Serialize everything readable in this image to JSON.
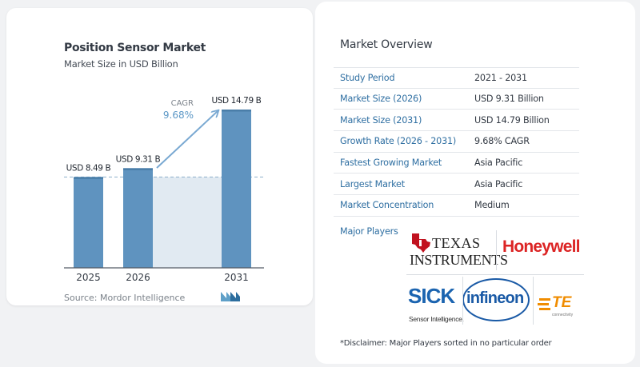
{
  "chart": {
    "title": "Position Sensor Market",
    "subtitle": "Market Size in USD Billion",
    "cagr_label": "CAGR",
    "cagr_value": "9.68%",
    "source": "Source:  Mordor Intelligence"
  },
  "chart_data": {
    "type": "bar",
    "title": "Position Sensor Market",
    "subtitle": "Market Size in USD Billion",
    "categories": [
      "2025",
      "2026",
      "2031"
    ],
    "values": [
      8.49,
      9.31,
      14.79
    ],
    "value_labels": [
      "USD 8.49 B",
      "USD 9.31 B",
      "USD 14.79 B"
    ],
    "ylim": [
      0,
      14.79
    ],
    "colors": {
      "bar": "#5f93bf",
      "bar_top": "#4a7ea9",
      "shade": "#e1eaf2",
      "arrow": "#7aa9d2",
      "axis": "#555c66"
    },
    "annotations": [
      {
        "text": "CAGR",
        "value": "9.68%"
      }
    ]
  },
  "overview": {
    "title": "Market Overview",
    "rows": [
      {
        "label": "Study Period",
        "value": "2021 - 2031"
      },
      {
        "label": "Market Size (2026)",
        "value": "USD 9.31 Billion"
      },
      {
        "label": "Market Size (2031)",
        "value": "USD 14.79 Billion"
      },
      {
        "label": "Growth Rate (2026 - 2031)",
        "value": "9.68% CAGR"
      },
      {
        "label": "Fastest Growing Market",
        "value": "Asia Pacific"
      },
      {
        "label": "Largest Market",
        "value": "Asia Pacific"
      },
      {
        "label": "Market Concentration",
        "value": "Medium"
      }
    ]
  },
  "players": {
    "label": "Major Players",
    "logos": {
      "ti": {
        "top": "TEXAS",
        "bottom": "INSTRUMENTS",
        "icon": "texas-state-icon"
      },
      "honeywell": {
        "name": "Honeywell"
      },
      "sick": {
        "name": "SICK",
        "tagline": "Sensor Intelligence."
      },
      "infineon": {
        "name": "infineon"
      },
      "te": {
        "name": "TE",
        "tagline": "connectivity",
        "icon": "te-stripes-icon"
      }
    },
    "disclaimer": "*Disclaimer: Major Players sorted in no particular order"
  }
}
